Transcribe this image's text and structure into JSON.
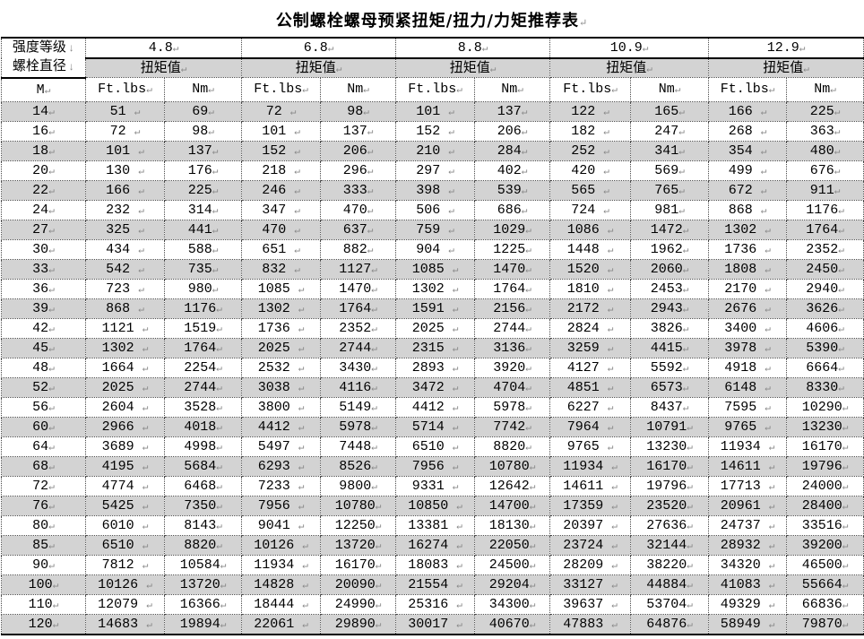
{
  "title": "公制螺栓螺母预紧扭矩/扭力/力矩推荐表",
  "marks": {
    "cell_end": "↵",
    "line_break": "↓"
  },
  "colors": {
    "row_stripe": "#d3d3d3",
    "mark_gray": "#8a8a8a",
    "border": "#000000"
  },
  "table": {
    "corner_line1": "强度等级",
    "corner_line2": "螺栓直径",
    "grades": [
      "4.8",
      "6.8",
      "8.8",
      "10.9",
      "12.9"
    ],
    "torque_label": "扭矩值",
    "diameter_header": "M",
    "unit_headers": [
      "Ft.lbs",
      "Nm"
    ],
    "rows": [
      {
        "m": "14",
        "values": [
          51,
          69,
          72,
          98,
          101,
          137,
          122,
          165,
          166,
          225
        ]
      },
      {
        "m": "16",
        "values": [
          72,
          98,
          101,
          137,
          152,
          206,
          182,
          247,
          268,
          363
        ]
      },
      {
        "m": "18",
        "values": [
          101,
          137,
          152,
          206,
          210,
          284,
          252,
          341,
          354,
          480
        ]
      },
      {
        "m": "20",
        "values": [
          130,
          176,
          218,
          296,
          297,
          402,
          420,
          569,
          499,
          676
        ]
      },
      {
        "m": "22",
        "values": [
          166,
          225,
          246,
          333,
          398,
          539,
          565,
          765,
          672,
          911
        ]
      },
      {
        "m": "24",
        "values": [
          232,
          314,
          347,
          470,
          506,
          686,
          724,
          981,
          868,
          1176
        ]
      },
      {
        "m": "27",
        "values": [
          325,
          441,
          470,
          637,
          759,
          1029,
          1086,
          1472,
          1302,
          1764
        ]
      },
      {
        "m": "30",
        "values": [
          434,
          588,
          651,
          882,
          904,
          1225,
          1448,
          1962,
          1736,
          2352
        ]
      },
      {
        "m": "33",
        "values": [
          542,
          735,
          832,
          1127,
          1085,
          1470,
          1520,
          2060,
          1808,
          2450
        ]
      },
      {
        "m": "36",
        "values": [
          723,
          980,
          1085,
          1470,
          1302,
          1764,
          1810,
          2453,
          2170,
          2940
        ]
      },
      {
        "m": "39",
        "values": [
          868,
          1176,
          1302,
          1764,
          1591,
          2156,
          2172,
          2943,
          2676,
          3626
        ]
      },
      {
        "m": "42",
        "values": [
          1121,
          1519,
          1736,
          2352,
          2025,
          2744,
          2824,
          3826,
          3400,
          4606
        ]
      },
      {
        "m": "45",
        "values": [
          1302,
          1764,
          2025,
          2744,
          2315,
          3136,
          3259,
          4415,
          3978,
          5390
        ]
      },
      {
        "m": "48",
        "values": [
          1664,
          2254,
          2532,
          3430,
          2893,
          3920,
          4127,
          5592,
          4918,
          6664
        ]
      },
      {
        "m": "52",
        "values": [
          2025,
          2744,
          3038,
          4116,
          3472,
          4704,
          4851,
          6573,
          6148,
          8330
        ]
      },
      {
        "m": "56",
        "values": [
          2604,
          3528,
          3800,
          5149,
          4412,
          5978,
          6227,
          8437,
          7595,
          10290
        ]
      },
      {
        "m": "60",
        "values": [
          2966,
          4018,
          4412,
          5978,
          5714,
          7742,
          7964,
          10791,
          9765,
          13230
        ]
      },
      {
        "m": "64",
        "values": [
          3689,
          4998,
          5497,
          7448,
          6510,
          8820,
          9765,
          13230,
          11934,
          16170
        ]
      },
      {
        "m": "68",
        "values": [
          4195,
          5684,
          6293,
          8526,
          7956,
          10780,
          11934,
          16170,
          14611,
          19796
        ]
      },
      {
        "m": "72",
        "values": [
          4774,
          6468,
          7233,
          9800,
          9331,
          12642,
          14611,
          19796,
          17713,
          24000
        ]
      },
      {
        "m": "76",
        "values": [
          5425,
          7350,
          7956,
          10780,
          10850,
          14700,
          17359,
          23520,
          20961,
          28400
        ]
      },
      {
        "m": "80",
        "values": [
          6010,
          8143,
          9041,
          12250,
          13381,
          18130,
          20397,
          27636,
          24737,
          33516
        ]
      },
      {
        "m": "85",
        "values": [
          6510,
          8820,
          10126,
          13720,
          16274,
          22050,
          23724,
          32144,
          28932,
          39200
        ]
      },
      {
        "m": "90",
        "values": [
          7812,
          10584,
          11934,
          16170,
          18083,
          24500,
          28209,
          38220,
          34320,
          46500
        ]
      },
      {
        "m": "100",
        "values": [
          10126,
          13720,
          14828,
          20090,
          21554,
          29204,
          33127,
          44884,
          41083,
          55664
        ]
      },
      {
        "m": "110",
        "values": [
          12079,
          16366,
          18444,
          24990,
          25316,
          34300,
          39637,
          53704,
          49329,
          66836
        ]
      },
      {
        "m": "120",
        "values": [
          14683,
          19894,
          22061,
          29890,
          30017,
          40670,
          47883,
          64876,
          58949,
          79870
        ]
      }
    ]
  }
}
